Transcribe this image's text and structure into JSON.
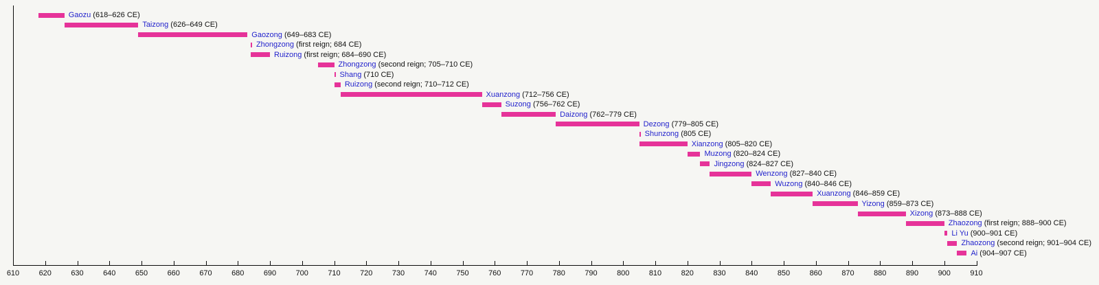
{
  "figure": {
    "background_color": "#f6f6f3",
    "bar_color": "#e63399",
    "name_link_color": "#2222cc",
    "text_color": "#111111",
    "axis_color": "#0a0a0a"
  },
  "chart_data": {
    "type": "bar",
    "variant": "horizontal-timeline-gantt",
    "title": "",
    "xlabel": "",
    "ylabel": "",
    "xlim": [
      610,
      910
    ],
    "tick_interval": 10,
    "x_ticks": [
      610,
      620,
      630,
      640,
      650,
      660,
      670,
      680,
      690,
      700,
      710,
      720,
      730,
      740,
      750,
      760,
      770,
      780,
      790,
      800,
      810,
      820,
      830,
      840,
      850,
      860,
      870,
      880,
      890,
      900,
      910
    ],
    "grid": false,
    "legend": "none",
    "reigns": [
      {
        "name": "Gaozu",
        "detail": "618–626 CE",
        "start": 618,
        "end": 626
      },
      {
        "name": "Taizong",
        "detail": "626–649 CE",
        "start": 626,
        "end": 649
      },
      {
        "name": "Gaozong",
        "detail": "649–683 CE",
        "start": 649,
        "end": 683
      },
      {
        "name": "Zhongzong",
        "detail": "first reign; 684 CE",
        "start": 684,
        "end": 684
      },
      {
        "name": "Ruizong",
        "detail": "first reign; 684–690 CE",
        "start": 684,
        "end": 690
      },
      {
        "name": "Zhongzong",
        "detail": "second reign; 705–710 CE",
        "start": 705,
        "end": 710
      },
      {
        "name": "Shang",
        "detail": "710 CE",
        "start": 710,
        "end": 710
      },
      {
        "name": "Ruizong",
        "detail": "second reign; 710–712 CE",
        "start": 710,
        "end": 712
      },
      {
        "name": "Xuanzong",
        "detail": "712–756 CE",
        "start": 712,
        "end": 756
      },
      {
        "name": "Suzong",
        "detail": "756–762 CE",
        "start": 756,
        "end": 762
      },
      {
        "name": "Daizong",
        "detail": "762–779 CE",
        "start": 762,
        "end": 779
      },
      {
        "name": "Dezong",
        "detail": "779–805 CE",
        "start": 779,
        "end": 805
      },
      {
        "name": "Shunzong",
        "detail": "805 CE",
        "start": 805,
        "end": 805
      },
      {
        "name": "Xianzong",
        "detail": "805–820 CE",
        "start": 805,
        "end": 820
      },
      {
        "name": "Muzong",
        "detail": "820–824 CE",
        "start": 820,
        "end": 824
      },
      {
        "name": "Jingzong",
        "detail": "824–827 CE",
        "start": 824,
        "end": 827
      },
      {
        "name": "Wenzong",
        "detail": "827–840 CE",
        "start": 827,
        "end": 840
      },
      {
        "name": "Wuzong",
        "detail": "840–846 CE",
        "start": 840,
        "end": 846
      },
      {
        "name": "Xuanzong",
        "detail": "846–859 CE",
        "start": 846,
        "end": 859
      },
      {
        "name": "Yizong",
        "detail": "859–873 CE",
        "start": 859,
        "end": 873
      },
      {
        "name": "Xizong",
        "detail": "873–888 CE",
        "start": 873,
        "end": 888
      },
      {
        "name": "Zhaozong",
        "detail": "first reign; 888–900 CE",
        "start": 888,
        "end": 900
      },
      {
        "name": "Li Yu",
        "detail": "900–901 CE",
        "start": 900,
        "end": 901
      },
      {
        "name": "Zhaozong",
        "detail": "second reign; 901–904 CE",
        "start": 901,
        "end": 904
      },
      {
        "name": "Ai",
        "detail": "904–907 CE",
        "start": 904,
        "end": 907
      }
    ]
  }
}
